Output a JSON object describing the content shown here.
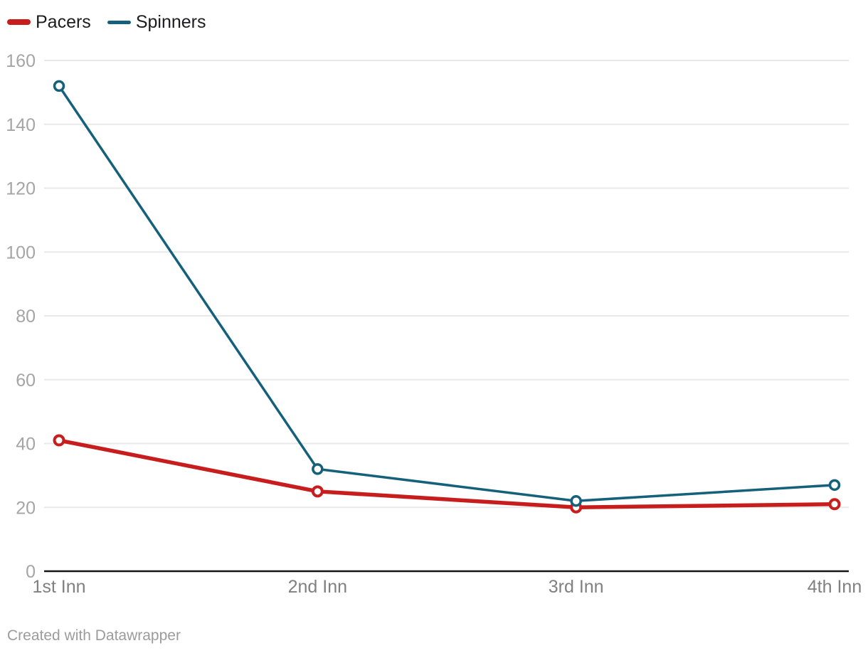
{
  "legend": {
    "items": [
      {
        "label": "Pacers",
        "color": "#c71e1d"
      },
      {
        "label": "Spinners",
        "color": "#15607a"
      }
    ]
  },
  "footer": {
    "credit": "Created with Datawrapper"
  },
  "chart_data": {
    "type": "line",
    "categories": [
      "1st Inn",
      "2nd Inn",
      "3rd Inn",
      "4th Inn"
    ],
    "series": [
      {
        "name": "Pacers",
        "color": "#c71e1d",
        "values": [
          41,
          25,
          20,
          21
        ],
        "line_width": 5.5,
        "marker": "open-circle"
      },
      {
        "name": "Spinners",
        "color": "#15607a",
        "values": [
          152,
          32,
          22,
          27
        ],
        "line_width": 3.5,
        "marker": "open-circle"
      }
    ],
    "ylim": [
      0,
      160
    ],
    "y_ticks": [
      0,
      20,
      40,
      60,
      80,
      100,
      120,
      140,
      160
    ],
    "grid": "horizontal",
    "legend_position": "top-left"
  },
  "colors": {
    "background": "#ffffff",
    "grid_line": "#e8e8e8",
    "axis_line": "#161616",
    "y_tick_label": "#a5a5a5",
    "x_tick_label": "#808080",
    "legend_text": "#1d1d1f",
    "footer_text": "#9c9c9c",
    "marker_fill": "#ffffff"
  }
}
